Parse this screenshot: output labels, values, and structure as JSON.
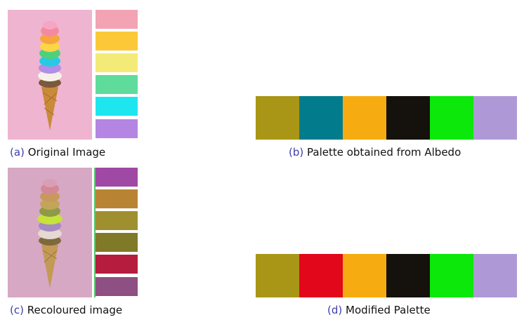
{
  "figure": {
    "a": {
      "tag": "(a)",
      "caption": "Original Image",
      "swatches": [
        "#f2a3b4",
        "#fbc938",
        "#f4ea77",
        "#5fdb9c",
        "#1ee6ef",
        "#b485e2"
      ],
      "background": "#efb4d0"
    },
    "b": {
      "tag": "(b)",
      "caption": "Palette obtained from Albedo",
      "colors": [
        "#a99617",
        "#027c8c",
        "#f6ac10",
        "#15110d",
        "#0be80a",
        "#ae99d6"
      ]
    },
    "c": {
      "tag": "(c)",
      "caption": "Recoloured image",
      "swatches": [
        "#a049a4",
        "#b88433",
        "#9f8f2e",
        "#7f7928",
        "#b51c3d",
        "#8e4f82"
      ],
      "background": "#d6a8c4"
    },
    "d": {
      "tag": "(d)",
      "caption": "Modified Palette",
      "colors": [
        "#a99617",
        "#e2071a",
        "#f6ac10",
        "#15110d",
        "#0be80a",
        "#ae99d6"
      ]
    }
  }
}
